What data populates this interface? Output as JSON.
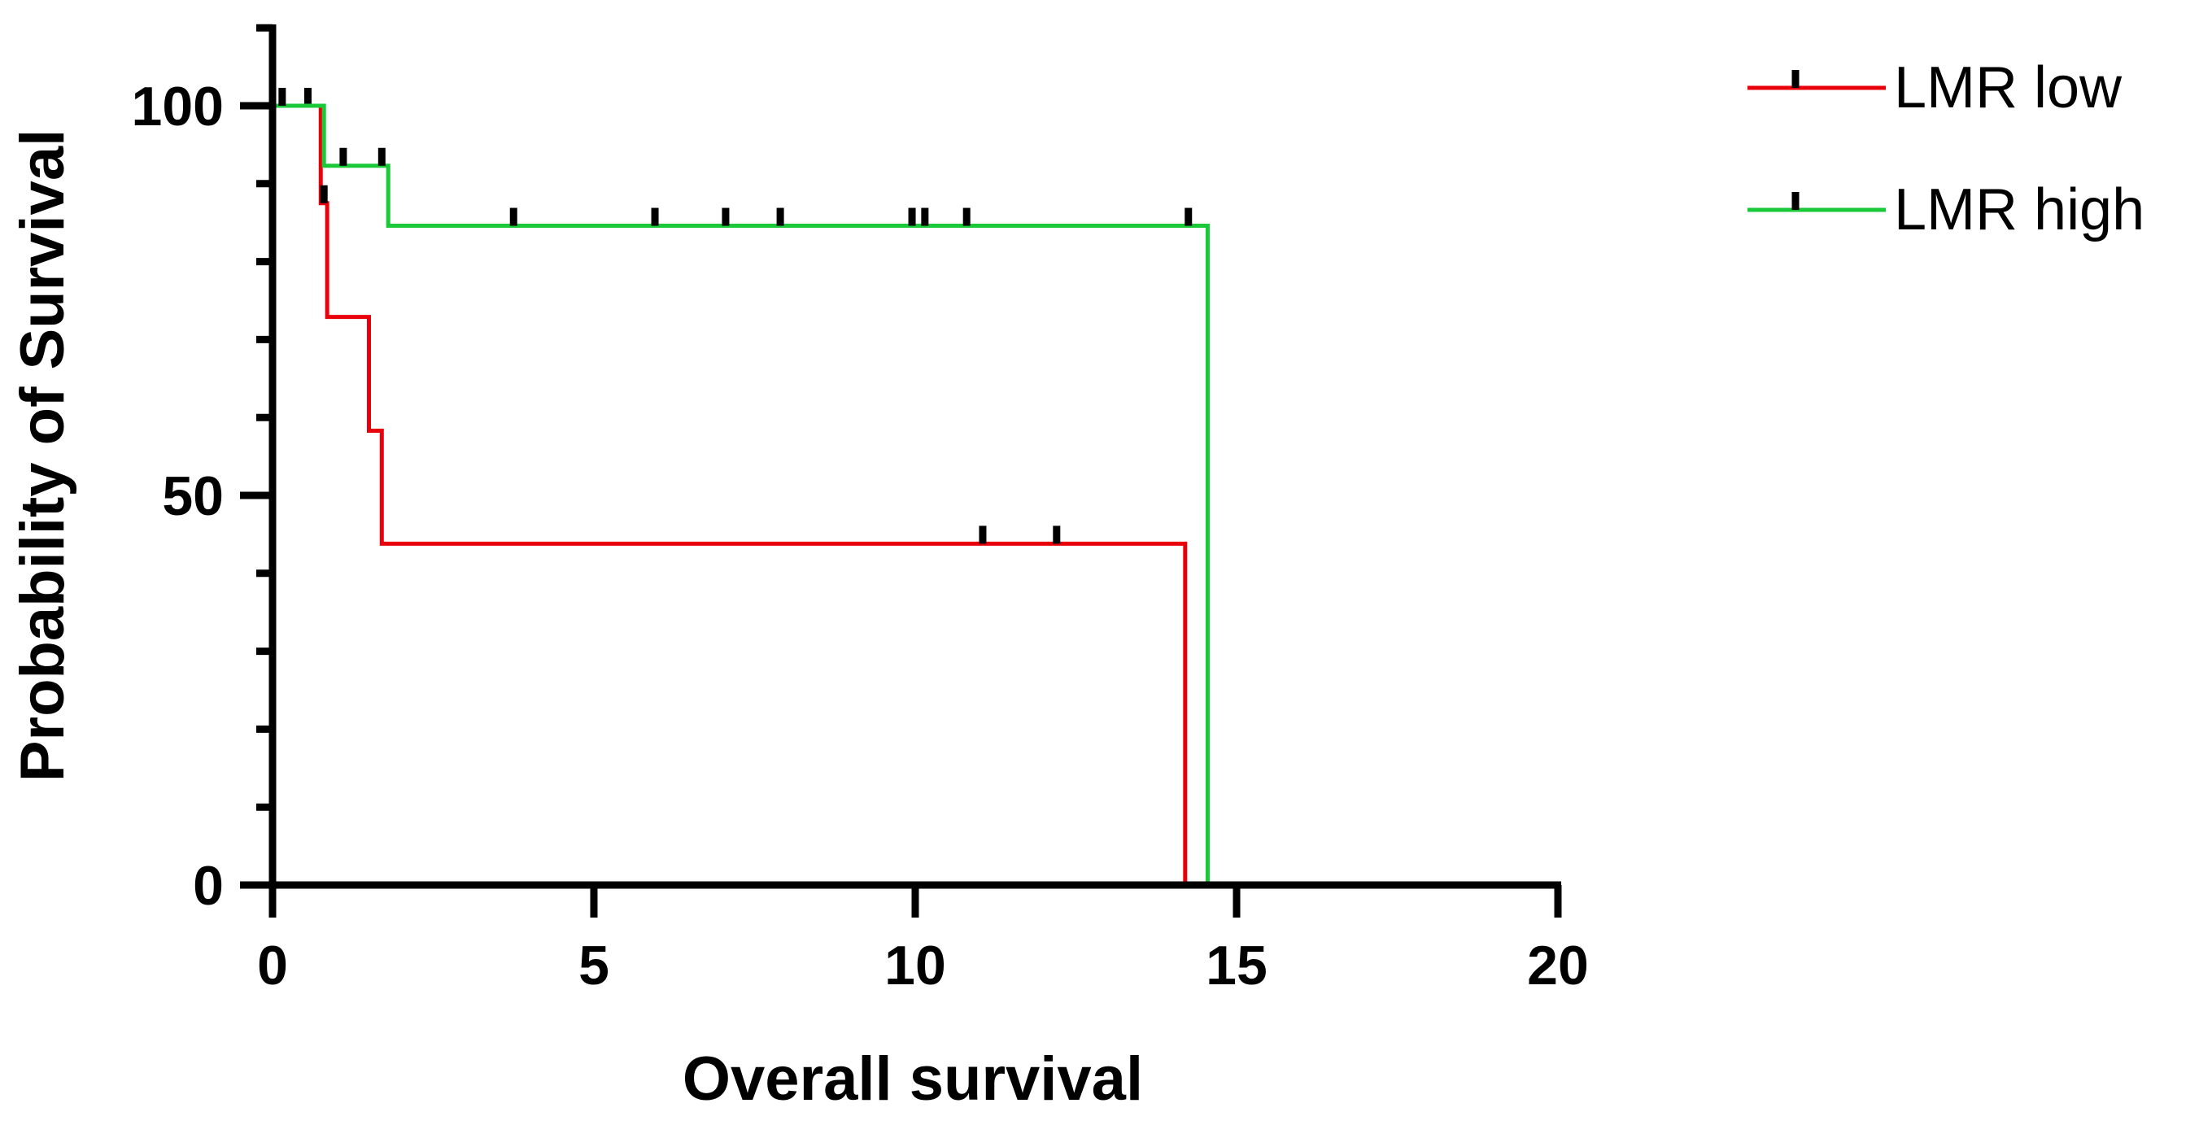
{
  "chart_data": {
    "type": "line",
    "subtype": "kaplan-meier",
    "title": "",
    "xlabel": "Overall survival",
    "ylabel": "Probability of Survival",
    "xlim": [
      0,
      20
    ],
    "ylim": [
      0,
      100
    ],
    "x_ticks": [
      0,
      5,
      10,
      15,
      20
    ],
    "y_ticks": [
      0,
      50,
      100
    ],
    "x_tick_labels": [
      "0",
      "5",
      "10",
      "15",
      "20"
    ],
    "y_tick_labels": [
      "0",
      "50",
      "100"
    ],
    "grid": false,
    "legend_position": "top-right",
    "series": [
      {
        "name": "LMR low",
        "color": "#e8000b",
        "steps": [
          {
            "x": 0,
            "y": 100
          },
          {
            "x": 0.75,
            "y": 87.5
          },
          {
            "x": 0.85,
            "y": 72.9
          },
          {
            "x": 1.5,
            "y": 58.3
          },
          {
            "x": 1.7,
            "y": 43.8
          },
          {
            "x": 14.2,
            "y": 0
          }
        ],
        "end_x": 14.2,
        "censored": [
          {
            "x": 0.55,
            "y": 100
          },
          {
            "x": 0.8,
            "y": 87.5
          },
          {
            "x": 11.05,
            "y": 43.8
          },
          {
            "x": 12.2,
            "y": 43.8
          }
        ]
      },
      {
        "name": "LMR high",
        "color": "#1ac938",
        "steps": [
          {
            "x": 0,
            "y": 100
          },
          {
            "x": 0.8,
            "y": 92.3
          },
          {
            "x": 1.8,
            "y": 84.6
          },
          {
            "x": 14.55,
            "y": 0
          }
        ],
        "end_x": 14.55,
        "censored": [
          {
            "x": 0.15,
            "y": 100
          },
          {
            "x": 1.1,
            "y": 92.3
          },
          {
            "x": 1.7,
            "y": 92.3
          },
          {
            "x": 3.75,
            "y": 84.6
          },
          {
            "x": 5.95,
            "y": 84.6
          },
          {
            "x": 7.05,
            "y": 84.6
          },
          {
            "x": 7.9,
            "y": 84.6
          },
          {
            "x": 9.95,
            "y": 84.6
          },
          {
            "x": 10.15,
            "y": 84.6
          },
          {
            "x": 10.8,
            "y": 84.6
          },
          {
            "x": 14.25,
            "y": 84.6
          }
        ]
      }
    ]
  }
}
